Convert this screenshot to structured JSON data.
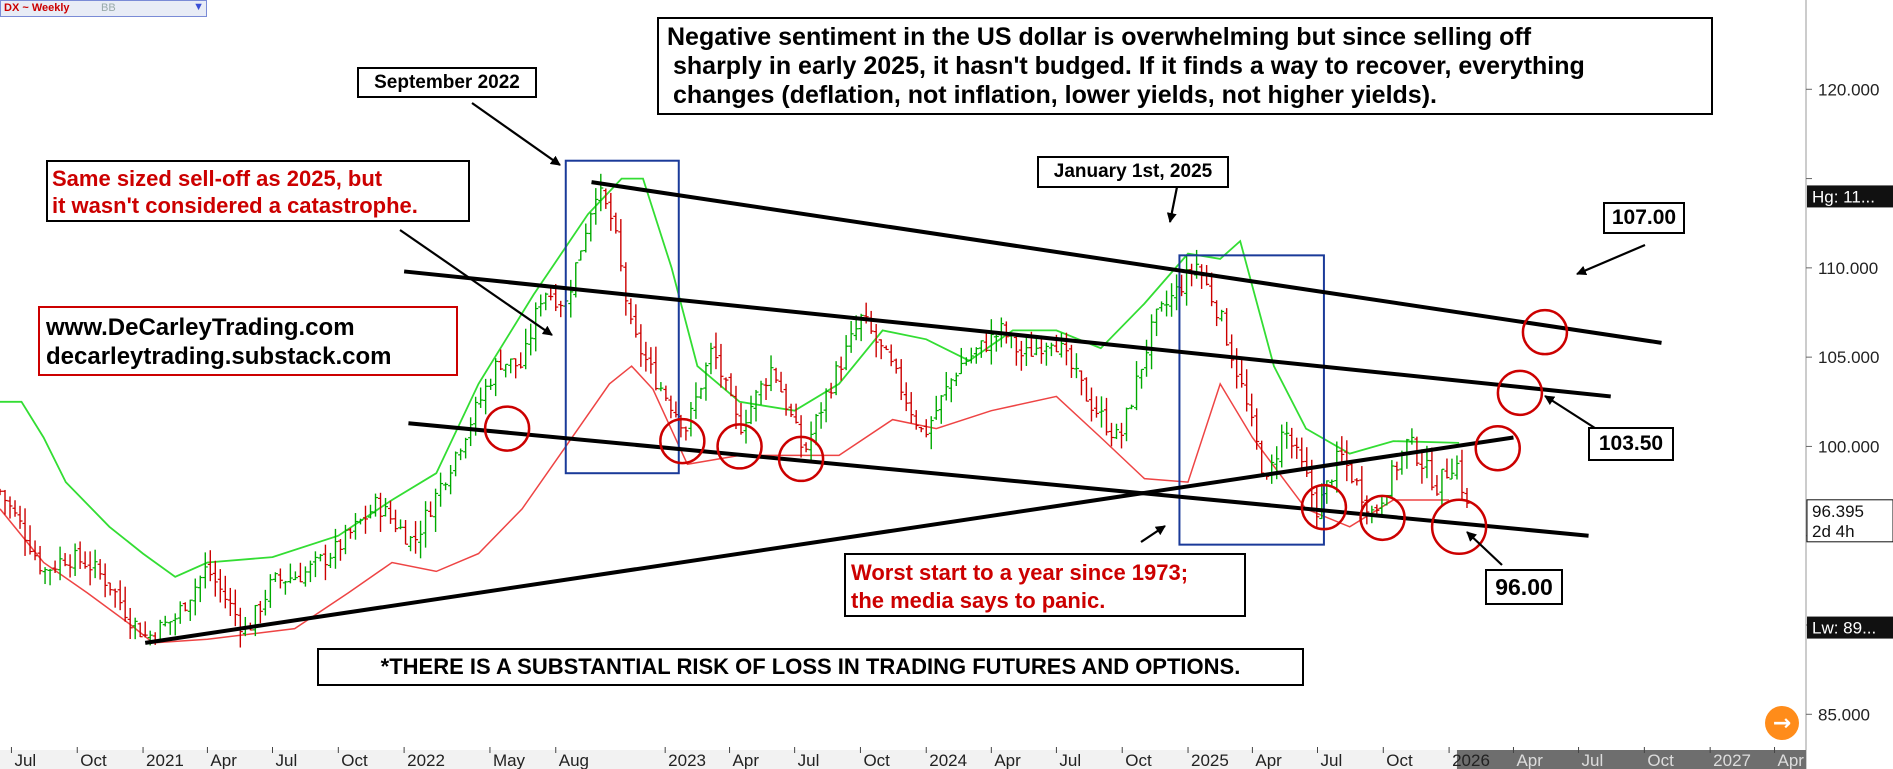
{
  "symbol_badge": {
    "label": "DX ~ Weekly",
    "sub": "BB",
    "dropdown_icon": "triangle-down-icon"
  },
  "annotations": {
    "headline": [
      "Negative sentiment in the US dollar is overwhelming but since selling off",
      "sharply in early 2025, it hasn't budged. If it finds a way to recover, everything",
      "changes (deflation, not inflation, lower yields, not higher yields)."
    ],
    "september_2022": "September 2022",
    "january_2025": "January 1st, 2025",
    "same_sized": [
      "Same sized sell-off as 2025, but",
      "it wasn't considered a catastrophe."
    ],
    "websites": [
      "www.DeCarleyTrading.com",
      "decarleytrading.substack.com"
    ],
    "worst_start": [
      "Worst start to a year since 1973;",
      "the media says to panic."
    ],
    "disclaimer": "*THERE IS A SUBSTANTIAL RISK OF LOSS IN TRADING FUTURES AND OPTIONS.",
    "level_107": "107.00",
    "level_103": "103.50",
    "level_96": "96.00"
  },
  "right_axis_tags": {
    "high": "Hg: 11...",
    "price": "96.395",
    "countdown": "2d 4h",
    "low": "Lw: 89..."
  },
  "forward_button_icon": "arrow-right-icon",
  "colors": {
    "bar_up": "#00aa00",
    "bar_down": "#cc0000",
    "upper_band": "#33dd33",
    "lower_band": "#ee4444",
    "box": "#1a3a99",
    "circle": "#cc0000",
    "trendline": "#000000",
    "accent": "#ff8c1a"
  },
  "chart_data": {
    "type": "bar",
    "title": "DX ~ Weekly",
    "instrument": "US Dollar Index futures (DX), weekly OHLC with Bollinger Bands",
    "x_axis_labels": [
      "Jul",
      "Oct",
      "2021",
      "Apr",
      "Jul",
      "Oct",
      "2022",
      "May",
      "Aug",
      "2023",
      "Apr",
      "Jul",
      "Oct",
      "2024",
      "Apr",
      "Jul",
      "Oct",
      "2025",
      "Apr",
      "Jul",
      "Oct",
      "2026",
      "Apr",
      "Jul",
      "Oct",
      "2027",
      "Apr"
    ],
    "x_axis_dates": [
      "2020-07",
      "2020-10",
      "2021-01",
      "2021-04",
      "2021-07",
      "2021-10",
      "2022-01",
      "2022-05",
      "2022-08",
      "2023-01",
      "2023-04",
      "2023-07",
      "2023-10",
      "2024-01",
      "2024-04",
      "2024-07",
      "2024-10",
      "2025-01",
      "2025-04",
      "2025-07",
      "2025-10",
      "2026-01",
      "2026-04",
      "2026-07",
      "2026-10",
      "2027-01",
      "2027-04"
    ],
    "y_ticks": [
      85,
      90,
      95,
      100,
      105,
      110,
      115,
      120
    ],
    "y_tick_labels": [
      "85.000",
      "90.000",
      "95.000",
      "100.000",
      "105.000",
      "110.000",
      "115.000",
      "120.000"
    ],
    "ylim": [
      83,
      125
    ],
    "xlim": [
      "2020-06-15",
      "2027-05-15"
    ],
    "last_price": 96.395,
    "price_path": [
      {
        "date": "2020-06-15",
        "close": 97.5
      },
      {
        "date": "2020-07-15",
        "close": 95.5
      },
      {
        "date": "2020-08-15",
        "close": 93.0
      },
      {
        "date": "2020-09-15",
        "close": 93.8
      },
      {
        "date": "2020-10-15",
        "close": 93.5
      },
      {
        "date": "2020-11-15",
        "close": 92.3
      },
      {
        "date": "2020-12-15",
        "close": 90.3
      },
      {
        "date": "2021-01-06",
        "close": 89.3
      },
      {
        "date": "2021-02-15",
        "close": 90.4
      },
      {
        "date": "2021-03-31",
        "close": 93.2
      },
      {
        "date": "2021-05-25",
        "close": 89.6
      },
      {
        "date": "2021-07-01",
        "close": 92.4
      },
      {
        "date": "2021-08-15",
        "close": 92.9
      },
      {
        "date": "2021-09-30",
        "close": 94.3
      },
      {
        "date": "2021-11-24",
        "close": 96.8
      },
      {
        "date": "2022-01-14",
        "close": 94.6
      },
      {
        "date": "2022-03-07",
        "close": 99.0
      },
      {
        "date": "2022-05-13",
        "close": 104.8
      },
      {
        "date": "2022-06-15",
        "close": 104.5
      },
      {
        "date": "2022-07-14",
        "close": 108.8
      },
      {
        "date": "2022-08-15",
        "close": 108.0
      },
      {
        "date": "2022-09-27",
        "close": 114.5
      },
      {
        "date": "2022-10-20",
        "close": 112.5
      },
      {
        "date": "2022-11-15",
        "close": 106.4
      },
      {
        "date": "2022-12-15",
        "close": 104.0
      },
      {
        "date": "2023-01-31",
        "close": 101.0
      },
      {
        "date": "2023-03-08",
        "close": 105.5
      },
      {
        "date": "2023-04-14",
        "close": 101.0
      },
      {
        "date": "2023-05-31",
        "close": 104.5
      },
      {
        "date": "2023-07-14",
        "close": 99.6
      },
      {
        "date": "2023-08-15",
        "close": 103.0
      },
      {
        "date": "2023-10-03",
        "close": 107.2
      },
      {
        "date": "2023-11-15",
        "close": 104.3
      },
      {
        "date": "2023-12-28",
        "close": 100.6
      },
      {
        "date": "2024-02-15",
        "close": 104.5
      },
      {
        "date": "2024-04-16",
        "close": 106.5
      },
      {
        "date": "2024-05-15",
        "close": 105.0
      },
      {
        "date": "2024-06-26",
        "close": 106.2
      },
      {
        "date": "2024-08-15",
        "close": 102.6
      },
      {
        "date": "2024-09-27",
        "close": 100.3
      },
      {
        "date": "2024-11-15",
        "close": 107.0
      },
      {
        "date": "2025-01-13",
        "close": 110.2
      },
      {
        "date": "2025-02-15",
        "close": 107.3
      },
      {
        "date": "2025-03-15",
        "close": 103.6
      },
      {
        "date": "2025-04-21",
        "close": 97.9
      },
      {
        "date": "2025-05-15",
        "close": 101.0
      },
      {
        "date": "2025-06-15",
        "close": 98.3
      },
      {
        "date": "2025-07-01",
        "close": 96.4
      },
      {
        "date": "2025-08-01",
        "close": 99.6
      },
      {
        "date": "2025-09-17",
        "close": 96.2
      },
      {
        "date": "2025-11-05",
        "close": 100.3
      },
      {
        "date": "2025-12-15",
        "close": 97.8
      },
      {
        "date": "2026-01-10",
        "close": 99.3
      },
      {
        "date": "2026-01-27",
        "close": 96.4
      }
    ],
    "series": [
      {
        "name": "upper band",
        "points": [
          {
            "date": "2020-06-15",
            "value": 102.5
          },
          {
            "date": "2020-07-15",
            "value": 102.5
          },
          {
            "date": "2020-08-15",
            "value": 100.5
          },
          {
            "date": "2020-09-15",
            "value": 98.0
          },
          {
            "date": "2020-11-15",
            "value": 95.5
          },
          {
            "date": "2021-01-01",
            "value": 94.0
          },
          {
            "date": "2021-02-15",
            "value": 92.7
          },
          {
            "date": "2021-04-01",
            "value": 93.5
          },
          {
            "date": "2021-07-01",
            "value": 93.8
          },
          {
            "date": "2021-10-01",
            "value": 95.0
          },
          {
            "date": "2021-12-15",
            "value": 97.0
          },
          {
            "date": "2022-02-15",
            "value": 98.5
          },
          {
            "date": "2022-04-15",
            "value": 103.5
          },
          {
            "date": "2022-07-01",
            "value": 108.5
          },
          {
            "date": "2022-09-15",
            "value": 113.0
          },
          {
            "date": "2022-11-01",
            "value": 115.0
          },
          {
            "date": "2022-12-01",
            "value": 115.0
          },
          {
            "date": "2023-01-10",
            "value": 110.0
          },
          {
            "date": "2023-02-15",
            "value": 104.5
          },
          {
            "date": "2023-04-15",
            "value": 102.5
          },
          {
            "date": "2023-07-01",
            "value": 102.0
          },
          {
            "date": "2023-09-01",
            "value": 103.5
          },
          {
            "date": "2023-11-01",
            "value": 106.5
          },
          {
            "date": "2024-01-01",
            "value": 106.0
          },
          {
            "date": "2024-03-01",
            "value": 104.8
          },
          {
            "date": "2024-05-01",
            "value": 106.5
          },
          {
            "date": "2024-07-01",
            "value": 106.5
          },
          {
            "date": "2024-09-01",
            "value": 105.5
          },
          {
            "date": "2024-11-01",
            "value": 108.0
          },
          {
            "date": "2025-01-01",
            "value": 110.8
          },
          {
            "date": "2025-02-15",
            "value": 110.5
          },
          {
            "date": "2025-03-15",
            "value": 111.5
          },
          {
            "date": "2025-05-01",
            "value": 104.5
          },
          {
            "date": "2025-06-15",
            "value": 101.0
          },
          {
            "date": "2025-08-15",
            "value": 99.6
          },
          {
            "date": "2025-10-15",
            "value": 100.3
          },
          {
            "date": "2026-01-15",
            "value": 100.2
          }
        ]
      },
      {
        "name": "lower band",
        "points": [
          {
            "date": "2020-06-15",
            "value": 96.5
          },
          {
            "date": "2020-08-15",
            "value": 93.5
          },
          {
            "date": "2020-10-15",
            "value": 91.8
          },
          {
            "date": "2020-12-15",
            "value": 90.0
          },
          {
            "date": "2021-01-15",
            "value": 89.0
          },
          {
            "date": "2021-04-01",
            "value": 89.2
          },
          {
            "date": "2021-08-01",
            "value": 89.8
          },
          {
            "date": "2021-10-15",
            "value": 91.8
          },
          {
            "date": "2021-12-15",
            "value": 93.5
          },
          {
            "date": "2022-02-15",
            "value": 93.0
          },
          {
            "date": "2022-04-15",
            "value": 94.0
          },
          {
            "date": "2022-06-15",
            "value": 96.5
          },
          {
            "date": "2022-08-15",
            "value": 100.0
          },
          {
            "date": "2022-10-15",
            "value": 103.5
          },
          {
            "date": "2022-11-15",
            "value": 104.5
          },
          {
            "date": "2022-12-15",
            "value": 103.2
          },
          {
            "date": "2023-02-01",
            "value": 99.0
          },
          {
            "date": "2023-04-15",
            "value": 99.5
          },
          {
            "date": "2023-07-01",
            "value": 99.5
          },
          {
            "date": "2023-09-01",
            "value": 99.5
          },
          {
            "date": "2023-11-15",
            "value": 101.5
          },
          {
            "date": "2024-01-15",
            "value": 101.0
          },
          {
            "date": "2024-04-01",
            "value": 102.0
          },
          {
            "date": "2024-07-01",
            "value": 102.8
          },
          {
            "date": "2024-09-01",
            "value": 100.5
          },
          {
            "date": "2024-11-01",
            "value": 98.2
          },
          {
            "date": "2025-01-01",
            "value": 98.0
          },
          {
            "date": "2025-02-15",
            "value": 103.5
          },
          {
            "date": "2025-04-01",
            "value": 100.5
          },
          {
            "date": "2025-06-15",
            "value": 96.5
          },
          {
            "date": "2025-08-15",
            "value": 95.5
          },
          {
            "date": "2025-10-15",
            "value": 97.0
          },
          {
            "date": "2026-01-01",
            "value": 97.0
          }
        ]
      }
    ],
    "trendlines": [
      {
        "from": {
          "date": "2022-09-20",
          "value": 114.8
        },
        "to": {
          "date": "2026-10-25",
          "value": 105.8
        }
      },
      {
        "from": {
          "date": "2022-01-01",
          "value": 109.8
        },
        "to": {
          "date": "2026-08-15",
          "value": 102.8
        }
      },
      {
        "from": {
          "date": "2022-01-07",
          "value": 101.3
        },
        "to": {
          "date": "2026-07-15",
          "value": 95.0
        }
      },
      {
        "from": {
          "date": "2021-01-04",
          "value": 89.0
        },
        "to": {
          "date": "2026-04-01",
          "value": 100.5
        }
      }
    ],
    "boxes": [
      {
        "from": "2022-08-15",
        "to": "2023-01-20",
        "low": 98.5,
        "high": 116.0
      },
      {
        "from": "2024-12-20",
        "to": "2025-07-10",
        "low": 94.5,
        "high": 110.7
      }
    ],
    "circles": [
      {
        "date": "2022-05-25",
        "value": 101.0
      },
      {
        "date": "2023-01-25",
        "value": 100.3
      },
      {
        "date": "2023-04-15",
        "value": 100.0
      },
      {
        "date": "2023-07-10",
        "value": 99.3
      },
      {
        "date": "2025-07-10",
        "value": 96.6
      },
      {
        "date": "2025-09-30",
        "value": 96.0
      },
      {
        "date": "2026-01-15",
        "value": 95.5
      },
      {
        "date": "2026-03-10",
        "value": 99.9
      },
      {
        "date": "2026-04-10",
        "value": 103.0
      },
      {
        "date": "2026-05-15",
        "value": 106.4
      }
    ]
  }
}
